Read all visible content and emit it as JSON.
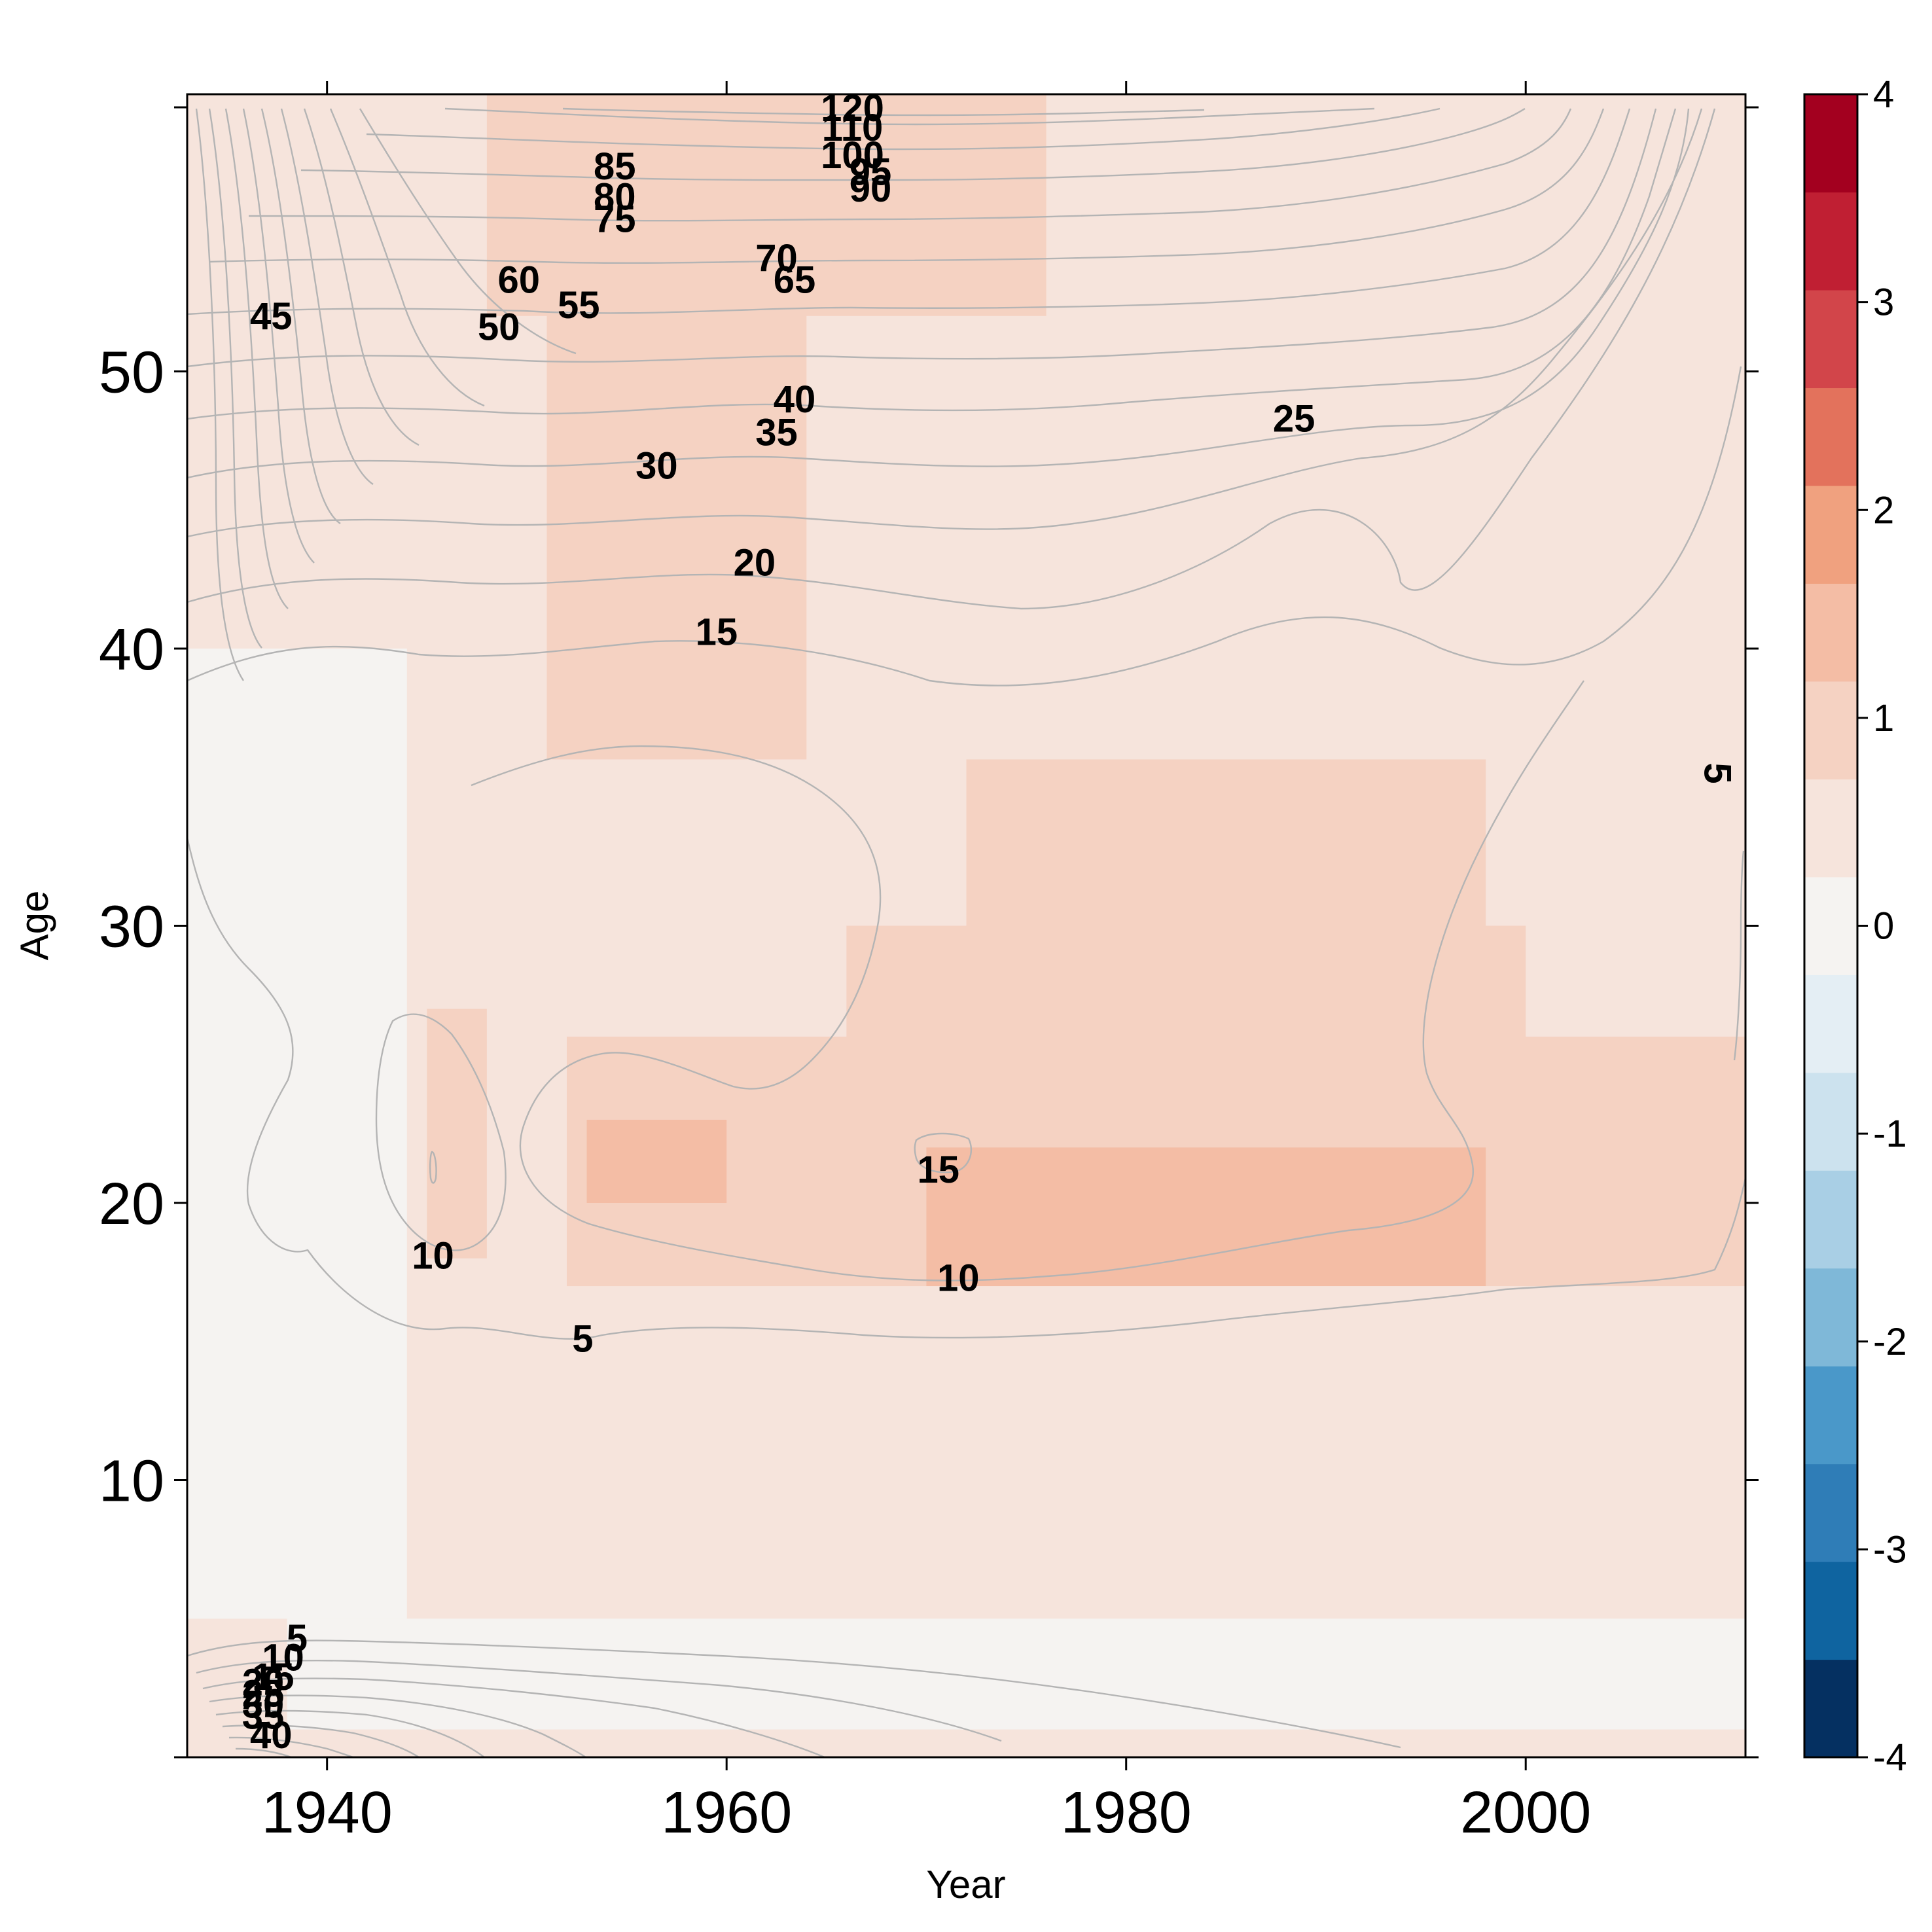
{
  "chart_data": {
    "type": "heatmap",
    "title": "",
    "xlabel": "Year",
    "ylabel": "Age",
    "xlim": [
      1933,
      2011
    ],
    "ylim": [
      0,
      60
    ],
    "x_ticks": [
      1940,
      1960,
      1980,
      2000
    ],
    "y_ticks": [
      10,
      20,
      30,
      40,
      50
    ],
    "colorbar": {
      "range": [
        -4,
        4
      ],
      "ticks": [
        4,
        3,
        2,
        1,
        0,
        -1,
        -2,
        -3,
        -4
      ],
      "colors": [
        "#053061",
        "#0f64a0",
        "#2f7db7",
        "#4a98c9",
        "#7fb8d8",
        "#a9cfe5",
        "#cce2ee",
        "#e4eef4",
        "#f5f3f1",
        "#f6e4dc",
        "#f5d2c2",
        "#f4bda5",
        "#f0a17f",
        "#e3725c",
        "#d2454a",
        "#c01f33",
        "#a3001f"
      ]
    },
    "heatmap_regions": [
      {
        "x": [
          1933,
          2011
        ],
        "y": [
          0,
          60
        ],
        "value": 0.45
      },
      {
        "x": [
          1933,
          1944
        ],
        "y": [
          5,
          40
        ],
        "value": 0.15
      },
      {
        "x": [
          1951,
          1964
        ],
        "y": [
          36,
          60
        ],
        "value": 0.8
      },
      {
        "x": [
          1948,
          1976
        ],
        "y": [
          52,
          60
        ],
        "value": 0.85
      },
      {
        "x": [
          1952,
          2011
        ],
        "y": [
          17,
          26
        ],
        "value": 0.95
      },
      {
        "x": [
          1966,
          2000
        ],
        "y": [
          22,
          30
        ],
        "value": 1.05
      },
      {
        "x": [
          1972,
          1998
        ],
        "y": [
          26,
          36
        ],
        "value": 0.9
      },
      {
        "x": [
          1945,
          1948
        ],
        "y": [
          18,
          27
        ],
        "value": 0.8
      },
      {
        "x": [
          1970,
          1998
        ],
        "y": [
          17,
          22
        ],
        "value": 1.2
      },
      {
        "x": [
          1953,
          1960
        ],
        "y": [
          20,
          23
        ],
        "value": 1.2
      },
      {
        "x": [
          1938,
          2011
        ],
        "y": [
          1,
          5
        ],
        "value": 0.2
      },
      {
        "x": [
          1933,
          2011
        ],
        "y": [
          0,
          1
        ],
        "value": 0.35
      },
      {
        "x": [
          1985,
          2011
        ],
        "y": [
          6,
          14
        ],
        "value": 0.3
      },
      {
        "x": [
          1995,
          2011
        ],
        "y": [
          42,
          60
        ],
        "value": 0.35
      }
    ],
    "contour_labels": [
      {
        "text": "45",
        "x": 1937.2,
        "y": 52.0
      },
      {
        "text": "50",
        "x": 1948.6,
        "y": 51.6
      },
      {
        "text": "60",
        "x": 1949.6,
        "y": 53.3
      },
      {
        "text": "55",
        "x": 1952.6,
        "y": 52.4
      },
      {
        "text": "85",
        "x": 1954.4,
        "y": 57.4
      },
      {
        "text": "80",
        "x": 1954.4,
        "y": 56.3
      },
      {
        "text": "75",
        "x": 1954.4,
        "y": 55.5
      },
      {
        "text": "70",
        "x": 1962.5,
        "y": 54.1
      },
      {
        "text": "65",
        "x": 1963.4,
        "y": 53.3
      },
      {
        "text": "40",
        "x": 1963.4,
        "y": 49.0
      },
      {
        "text": "35",
        "x": 1962.5,
        "y": 47.8
      },
      {
        "text": "30",
        "x": 1956.5,
        "y": 46.6
      },
      {
        "text": "25",
        "x": 1988.4,
        "y": 48.3
      },
      {
        "text": "20",
        "x": 1961.4,
        "y": 43.1
      },
      {
        "text": "15",
        "x": 1959.5,
        "y": 40.6
      },
      {
        "text": "120",
        "x": 1966.3,
        "y": 59.5
      },
      {
        "text": "110",
        "x": 1966.3,
        "y": 58.8
      },
      {
        "text": "100",
        "x": 1966.3,
        "y": 57.8
      },
      {
        "text": "95",
        "x": 1967.2,
        "y": 57.2
      },
      {
        "text": "90",
        "x": 1967.2,
        "y": 56.6
      },
      {
        "text": "10",
        "x": 1945.3,
        "y": 18.1
      },
      {
        "text": "5",
        "x": 1952.8,
        "y": 15.1
      },
      {
        "text": "15",
        "x": 1970.6,
        "y": 21.2
      },
      {
        "text": "10",
        "x": 1971.6,
        "y": 17.3
      },
      {
        "text": "5",
        "x": 2009.6,
        "y": 35.5
      },
      {
        "text": "5",
        "x": 1938.5,
        "y": 4.3
      },
      {
        "text": "10",
        "x": 1937.8,
        "y": 3.6
      },
      {
        "text": "15",
        "x": 1937.3,
        "y": 2.9
      },
      {
        "text": "20",
        "x": 1936.8,
        "y": 2.7
      },
      {
        "text": "25",
        "x": 1936.8,
        "y": 2.3
      },
      {
        "text": "30",
        "x": 1936.8,
        "y": 1.9
      },
      {
        "text": "35",
        "x": 1936.8,
        "y": 1.5
      },
      {
        "text": "40",
        "x": 1937.2,
        "y": 0.8
      }
    ],
    "grid": false,
    "legend": "right-colorbar"
  }
}
